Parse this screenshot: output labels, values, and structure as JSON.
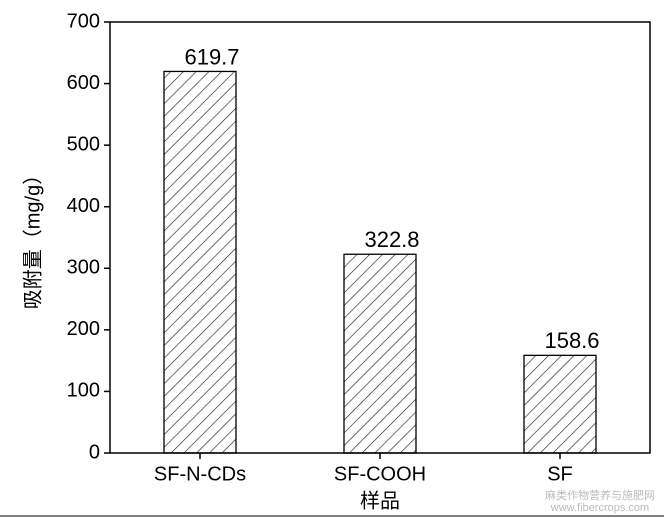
{
  "chart_data": {
    "type": "bar",
    "xlabel": "样品",
    "ylabel": "吸附量（mg/g）",
    "categories": [
      "SF-N-CDs",
      "SF-COOH",
      "SF"
    ],
    "values": [
      619.7,
      322.8,
      158.6
    ],
    "color": "#000000",
    "ylim": [
      0,
      700
    ],
    "yticks": [
      0,
      100,
      200,
      300,
      400,
      500,
      600,
      700
    ],
    "watermark": [
      "麻类作物营养与施肥网",
      "www.fibercrops.com"
    ]
  }
}
